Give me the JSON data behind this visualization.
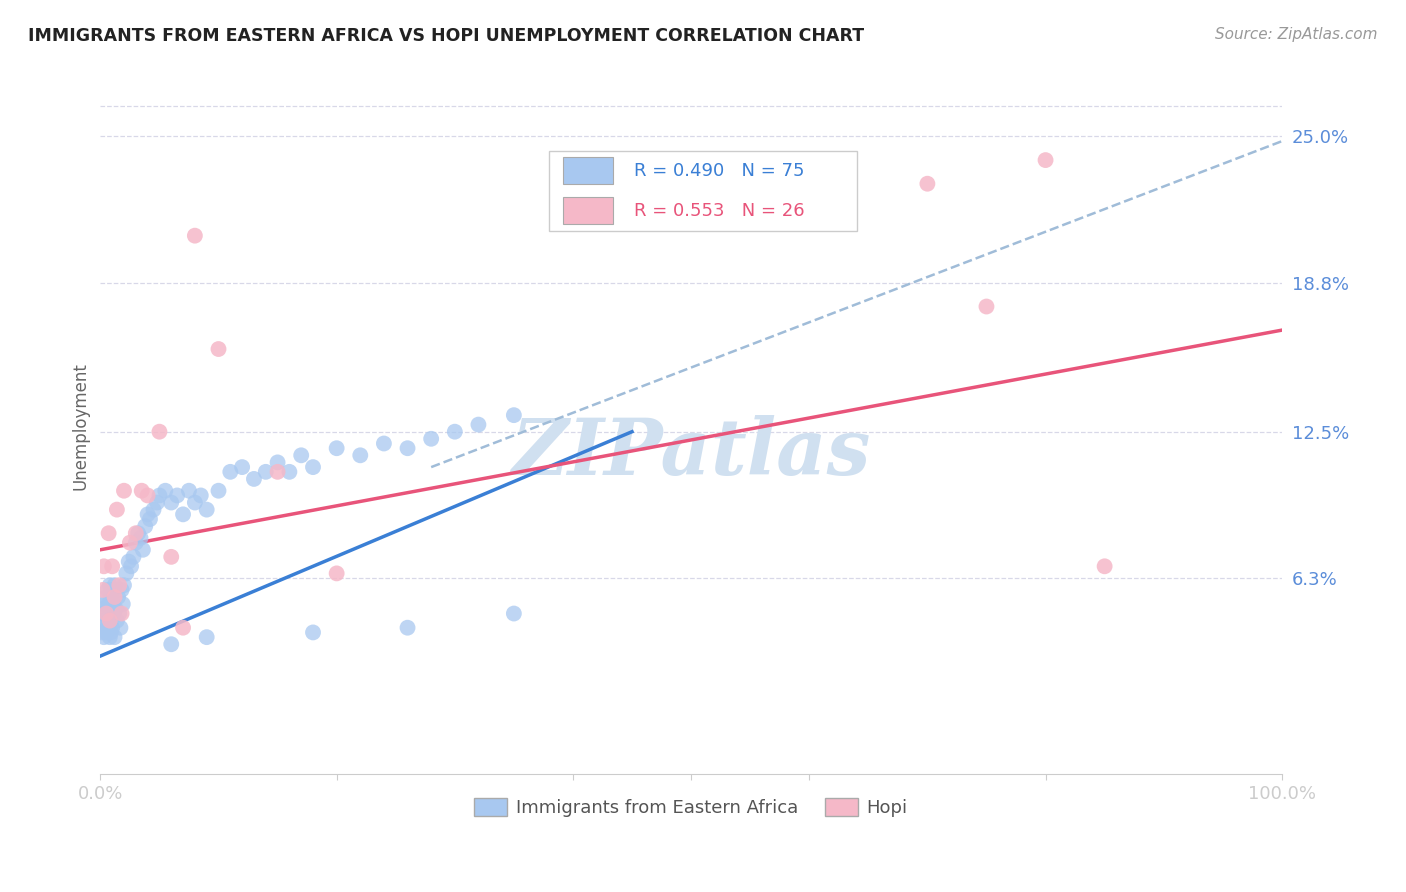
{
  "title": "IMMIGRANTS FROM EASTERN AFRICA VS HOPI UNEMPLOYMENT CORRELATION CHART",
  "source": "Source: ZipAtlas.com",
  "ylabel": "Unemployment",
  "ytick_labels": [
    "6.3%",
    "12.5%",
    "18.8%",
    "25.0%"
  ],
  "ytick_values": [
    0.063,
    0.125,
    0.188,
    0.25
  ],
  "xlim": [
    0.0,
    1.0
  ],
  "ylim": [
    -0.02,
    0.275
  ],
  "blue_R": 0.49,
  "blue_N": 75,
  "pink_R": 0.553,
  "pink_N": 26,
  "blue_color": "#a8c8f0",
  "pink_color": "#f5b8c8",
  "blue_line_color": "#3a7fd5",
  "pink_line_color": "#e8547a",
  "dashed_line_color": "#a0bcd8",
  "watermark": "ZIPatlas",
  "watermark_color": "#d0e0f0",
  "background_color": "#ffffff",
  "grid_color": "#d8d8e8",
  "title_color": "#222222",
  "axis_label_color": "#5b8dd9",
  "blue_dots_x": [
    0.001,
    0.002,
    0.002,
    0.003,
    0.003,
    0.004,
    0.004,
    0.005,
    0.005,
    0.006,
    0.006,
    0.007,
    0.007,
    0.008,
    0.008,
    0.009,
    0.009,
    0.01,
    0.01,
    0.011,
    0.011,
    0.012,
    0.012,
    0.013,
    0.014,
    0.015,
    0.016,
    0.017,
    0.018,
    0.019,
    0.02,
    0.022,
    0.024,
    0.026,
    0.028,
    0.03,
    0.032,
    0.034,
    0.036,
    0.038,
    0.04,
    0.042,
    0.045,
    0.048,
    0.05,
    0.055,
    0.06,
    0.065,
    0.07,
    0.075,
    0.08,
    0.085,
    0.09,
    0.1,
    0.11,
    0.12,
    0.13,
    0.14,
    0.15,
    0.16,
    0.17,
    0.18,
    0.2,
    0.22,
    0.24,
    0.26,
    0.28,
    0.3,
    0.32,
    0.35,
    0.18,
    0.09,
    0.06,
    0.26,
    0.35
  ],
  "blue_dots_y": [
    0.04,
    0.042,
    0.048,
    0.038,
    0.05,
    0.045,
    0.052,
    0.04,
    0.055,
    0.042,
    0.058,
    0.045,
    0.052,
    0.038,
    0.06,
    0.04,
    0.055,
    0.042,
    0.058,
    0.048,
    0.052,
    0.038,
    0.06,
    0.05,
    0.045,
    0.055,
    0.048,
    0.042,
    0.058,
    0.052,
    0.06,
    0.065,
    0.07,
    0.068,
    0.072,
    0.078,
    0.082,
    0.08,
    0.075,
    0.085,
    0.09,
    0.088,
    0.092,
    0.095,
    0.098,
    0.1,
    0.095,
    0.098,
    0.09,
    0.1,
    0.095,
    0.098,
    0.092,
    0.1,
    0.108,
    0.11,
    0.105,
    0.108,
    0.112,
    0.108,
    0.115,
    0.11,
    0.118,
    0.115,
    0.12,
    0.118,
    0.122,
    0.125,
    0.128,
    0.132,
    0.04,
    0.038,
    0.035,
    0.042,
    0.048
  ],
  "pink_dots_x": [
    0.002,
    0.003,
    0.005,
    0.007,
    0.008,
    0.01,
    0.012,
    0.014,
    0.016,
    0.018,
    0.02,
    0.025,
    0.03,
    0.035,
    0.04,
    0.05,
    0.06,
    0.07,
    0.08,
    0.1,
    0.15,
    0.2,
    0.7,
    0.75,
    0.8,
    0.85
  ],
  "pink_dots_y": [
    0.058,
    0.068,
    0.048,
    0.082,
    0.045,
    0.068,
    0.055,
    0.092,
    0.06,
    0.048,
    0.1,
    0.078,
    0.082,
    0.1,
    0.098,
    0.125,
    0.072,
    0.042,
    0.208,
    0.16,
    0.108,
    0.065,
    0.23,
    0.178,
    0.24,
    0.068
  ],
  "blue_line_x": [
    0.0,
    0.45
  ],
  "blue_line_y_start": 0.03,
  "blue_line_y_end": 0.125,
  "pink_line_x": [
    0.0,
    1.0
  ],
  "pink_line_y_start": 0.075,
  "pink_line_y_end": 0.168,
  "dashed_line_x": [
    0.28,
    1.0
  ],
  "dashed_line_y_start": 0.11,
  "dashed_line_y_end": 0.248
}
